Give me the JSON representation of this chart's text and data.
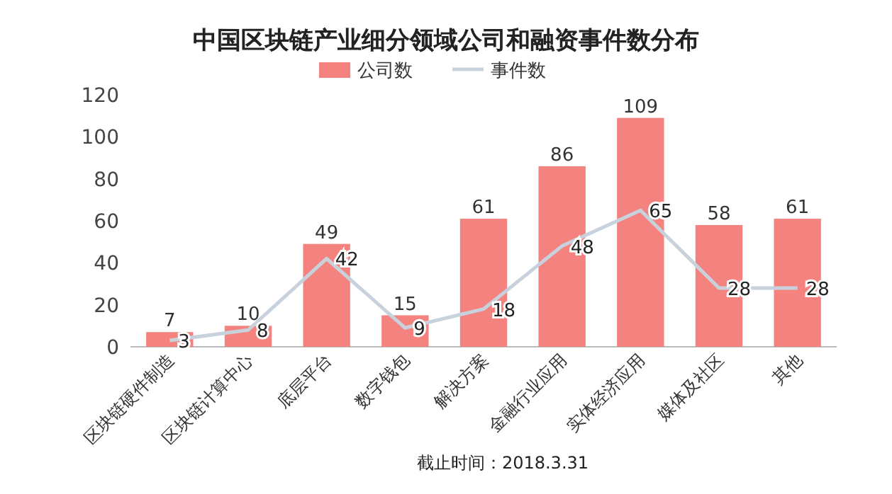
{
  "chart_data": {
    "type": "bar",
    "title": "中国区块链产业细分领域公司和融资事件数分布",
    "categories": [
      "区块链硬件制造",
      "区块链计算中心",
      "底层平台",
      "数字钱包",
      "解决方案",
      "金融行业应用",
      "实体经济应用",
      "媒体及社区",
      "其他"
    ],
    "series": [
      {
        "name": "公司数",
        "color": "#f4837f",
        "values": [
          7,
          10,
          49,
          15,
          61,
          86,
          109,
          58,
          61
        ]
      },
      {
        "name": "事件数",
        "type": "line",
        "color": "#c8d2dd",
        "values": [
          3,
          8,
          42,
          9,
          18,
          48,
          65,
          28,
          28
        ]
      }
    ],
    "ylim": [
      0,
      120
    ],
    "yticks": [
      0,
      20,
      40,
      60,
      80,
      100,
      120
    ],
    "grid": false,
    "legend": "top",
    "data_labels": true,
    "marker": "none",
    "annotations": [
      "截止时间：2018.3.31"
    ]
  }
}
